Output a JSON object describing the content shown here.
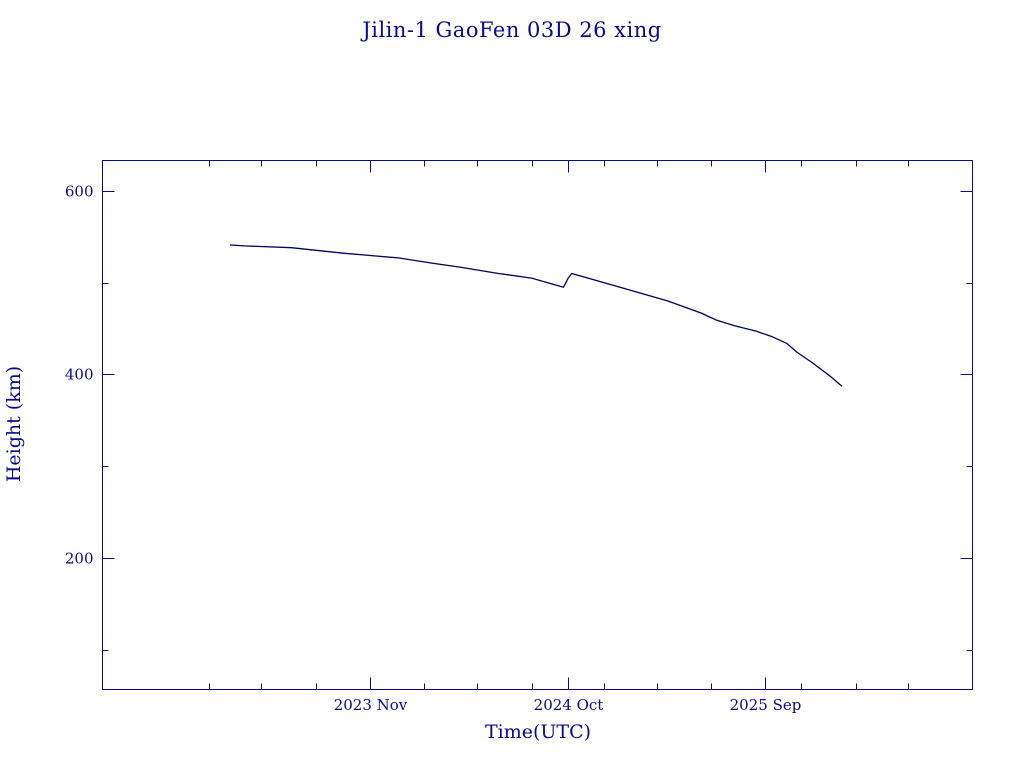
{
  "chart_data": {
    "type": "line",
    "title": "Jilin-1 GaoFen 03D 26 xing",
    "xlabel": "Time(UTC)",
    "ylabel": "Height (km)",
    "x_unit": "date",
    "xlim": [
      "2022-08-05",
      "2026-08-18"
    ],
    "ylim": [
      57,
      633
    ],
    "x_ticks": [
      {
        "date": "2023-11-01",
        "label": "2023 Nov"
      },
      {
        "date": "2024-10-01",
        "label": "2024 Oct"
      },
      {
        "date": "2025-09-01",
        "label": "2025 Sep"
      }
    ],
    "x_minor_ticks": [
      "2023-02-01",
      "2023-05-01",
      "2023-08-01",
      "2024-02-01",
      "2024-05-01",
      "2024-08-01",
      "2024-12-01",
      "2025-03-01",
      "2025-06-01",
      "2025-11-01",
      "2026-02-01",
      "2026-05-01"
    ],
    "y_ticks": [
      {
        "value": 200,
        "label": "200"
      },
      {
        "value": 400,
        "label": "400"
      },
      {
        "value": 600,
        "label": "600"
      }
    ],
    "y_minor_ticks": [
      100,
      300,
      500
    ],
    "grid": false,
    "legend": "none",
    "colors": {
      "axis": "#0a0a8c",
      "line": "#000060"
    },
    "series": [
      {
        "x": [
          "2023-03-09",
          "2023-04-03",
          "2023-06-21",
          "2023-09-19",
          "2023-12-19",
          "2024-02-17",
          "2024-03-31",
          "2024-06-06",
          "2024-08-01",
          "2024-09-24",
          "2024-10-02",
          "2024-10-08",
          "2024-11-15",
          "2025-01-14",
          "2025-03-20",
          "2025-05-15",
          "2025-06-11",
          "2025-07-11",
          "2025-08-17",
          "2025-09-13",
          "2025-10-07",
          "2025-10-25",
          "2025-11-19",
          "2025-12-20",
          "2026-01-09"
        ],
        "values": [
          541,
          540,
          538,
          532,
          527,
          521,
          517,
          510,
          505,
          495,
          505,
          510,
          503,
          492,
          480,
          467,
          459,
          453,
          447,
          441,
          434,
          424,
          413,
          398,
          387
        ]
      }
    ]
  }
}
